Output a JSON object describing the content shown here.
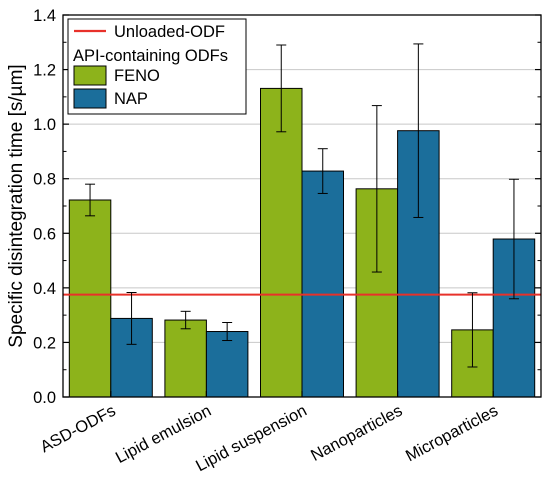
{
  "chart_data": {
    "type": "bar",
    "title": "",
    "xlabel": "",
    "ylabel": "Specific disintegration time [s/µm]",
    "categories": [
      "ASD-ODFs",
      "Lipid emulsion",
      "Lipid suspension",
      "Nanoparticles",
      "Microparticles"
    ],
    "ylim": [
      0,
      1.4
    ],
    "yticks": [
      "0.0",
      "0.2",
      "0.4",
      "0.6",
      "0.8",
      "1.0",
      "1.2",
      "1.4"
    ],
    "grid": "horizontal",
    "legend_position": "top-left",
    "legend_group_title": "API-containing ODFs",
    "reference_line": {
      "name": "Unloaded-ODF",
      "value": 0.375,
      "color": "#e8312a"
    },
    "series": [
      {
        "name": "FENO",
        "color": "#8db31b",
        "values": [
          0.722,
          0.282,
          1.131,
          0.763,
          0.246
        ],
        "errors": [
          0.058,
          0.032,
          0.159,
          0.305,
          0.136
        ]
      },
      {
        "name": "NAP",
        "color": "#1b6e9b",
        "values": [
          0.288,
          0.24,
          0.828,
          0.976,
          0.579
        ],
        "errors": [
          0.095,
          0.033,
          0.082,
          0.318,
          0.219
        ]
      }
    ]
  }
}
